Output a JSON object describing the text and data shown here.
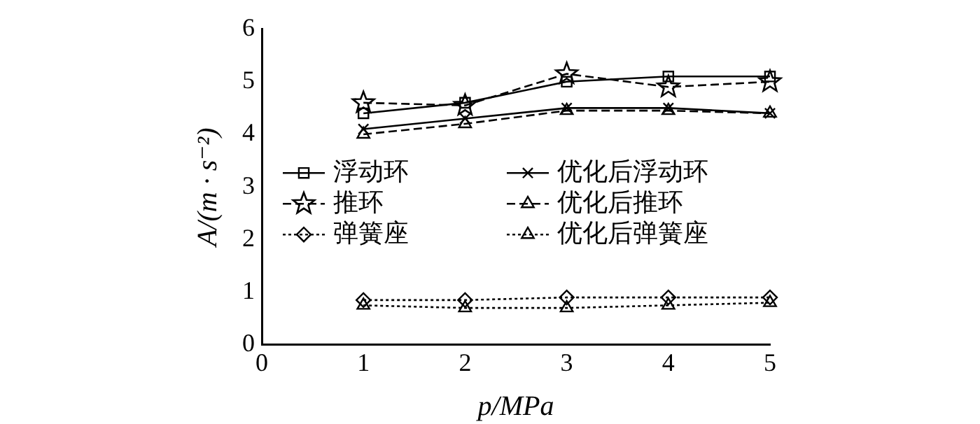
{
  "chart_data": {
    "type": "line",
    "xlabel": "p/MPa",
    "ylabel": "A/(m · s⁻²)",
    "xlim": [
      0,
      5
    ],
    "xticks": [
      0,
      1,
      2,
      3,
      4,
      5
    ],
    "ylim": [
      0,
      6
    ],
    "yticks": [
      0,
      1,
      2,
      3,
      4,
      5,
      6
    ],
    "x": [
      1,
      2,
      3,
      4,
      5
    ],
    "grid": false,
    "legend": "left",
    "series": [
      {
        "name": "浮动环",
        "color": "#000000",
        "marker": "square",
        "line_style": "solid",
        "values": [
          4.4,
          4.6,
          5.0,
          5.1,
          5.1
        ]
      },
      {
        "name": "优化后浮动环",
        "color": "#000000",
        "marker": "cross",
        "line_style": "solid",
        "values": [
          4.1,
          4.3,
          4.5,
          4.5,
          4.4
        ]
      },
      {
        "name": "推环",
        "color": "#000000",
        "marker": "star",
        "line_style": "dashed",
        "values": [
          4.6,
          4.55,
          5.15,
          4.9,
          5.0
        ]
      },
      {
        "name": "优化后推环",
        "color": "#000000",
        "marker": "triangle",
        "line_style": "dashed",
        "values": [
          4.0,
          4.2,
          4.45,
          4.45,
          4.4
        ]
      },
      {
        "name": "弹簧座",
        "color": "#000000",
        "marker": "diamond",
        "line_style": "dotted",
        "values": [
          0.85,
          0.85,
          0.9,
          0.9,
          0.9
        ]
      },
      {
        "name": "优化后弹簧座",
        "color": "#000000",
        "marker": "triangle",
        "line_style": "dotted",
        "values": [
          0.75,
          0.7,
          0.7,
          0.75,
          0.8
        ]
      }
    ]
  }
}
